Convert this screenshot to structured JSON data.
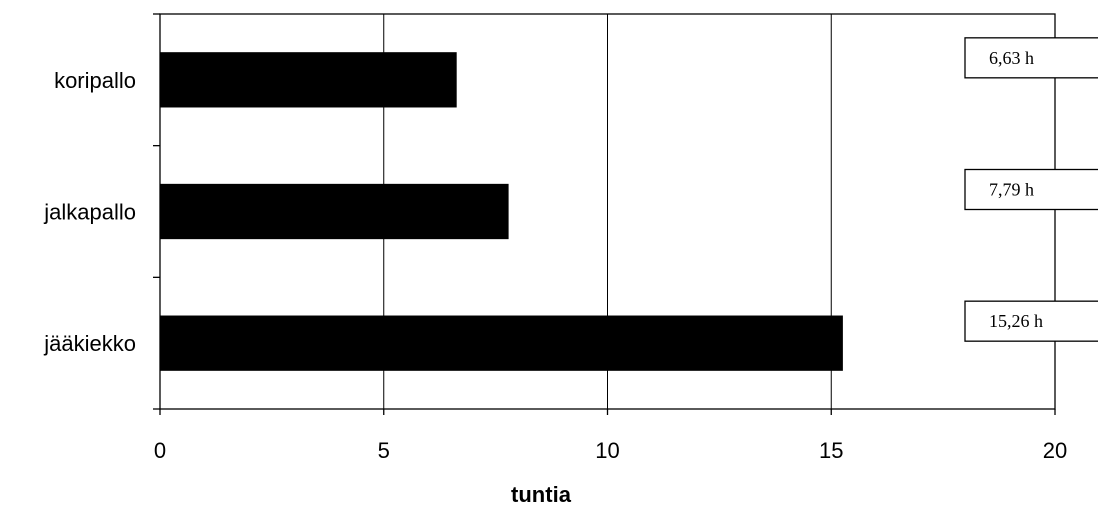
{
  "chart_data": {
    "type": "bar",
    "orientation": "horizontal",
    "categories": [
      "koripallo",
      "jalkapallo",
      "jääkiekko"
    ],
    "values": [
      6.63,
      7.79,
      15.26
    ],
    "data_labels": [
      "6,63 h",
      "7,79 h",
      "15,26 h"
    ],
    "xlabel": "tuntia",
    "xlim": [
      0,
      20
    ],
    "xticks": [
      0,
      5,
      10,
      15,
      20
    ],
    "xtick_labels": [
      "0",
      "5",
      "10",
      "15",
      "20"
    ],
    "grid": "vertical",
    "bar_color": "#000000"
  }
}
